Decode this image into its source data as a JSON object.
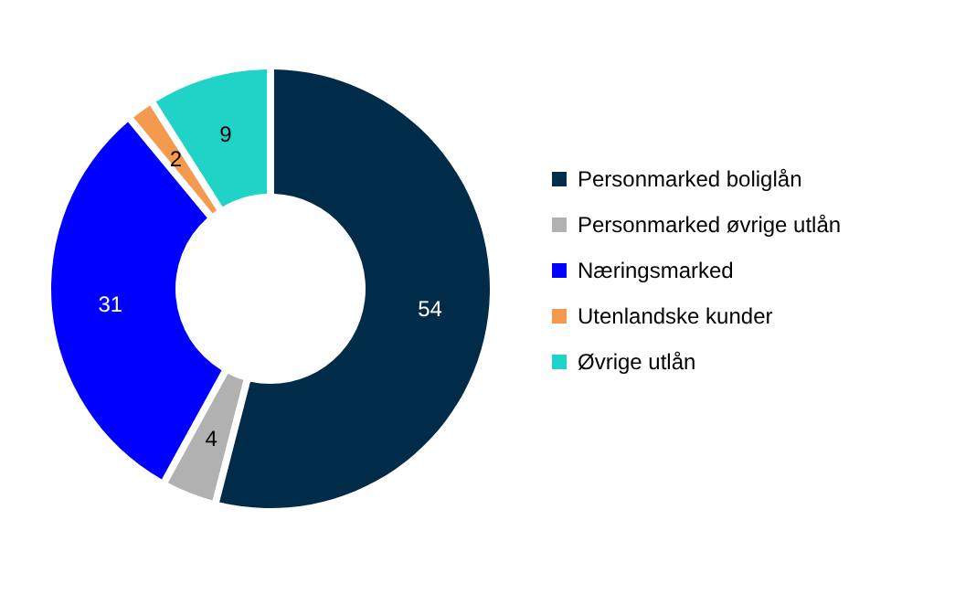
{
  "chart_data": {
    "type": "donut",
    "categories": [
      "Personmarked boliglån",
      "Personmarked øvrige utlån",
      "Næringsmarked",
      "Utenlandske kunder",
      "Øvrige utlån"
    ],
    "values": [
      54,
      4,
      31,
      2,
      9
    ],
    "colors": [
      "#002b49",
      "#b1b1b1",
      "#0000ff",
      "#f39a4e",
      "#1fd3c6"
    ],
    "data_labels": true,
    "legend": "right"
  }
}
